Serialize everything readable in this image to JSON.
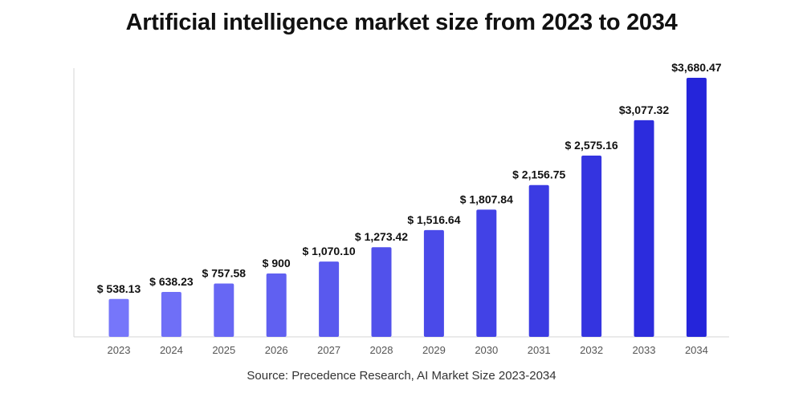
{
  "title": "Artificial intelligence market size from 2023 to 2034",
  "source": "Source: Precedence Research, AI Market Size 2023-2034",
  "colors": {
    "bar_light": "#7676fa",
    "bar_dark": "#2525da",
    "axis": "#d6d6d6"
  },
  "chart_data": {
    "type": "bar",
    "title": "Artificial intelligence market size from 2023 to 2034",
    "xlabel": "",
    "ylabel": "",
    "ylim": [
      0,
      3700
    ],
    "grid": false,
    "categories": [
      "2023",
      "2024",
      "2025",
      "2026",
      "2027",
      "2028",
      "2029",
      "2030",
      "2031",
      "2032",
      "2033",
      "2034"
    ],
    "values": [
      538.13,
      638.23,
      757.58,
      900,
      1070.1,
      1273.42,
      1516.64,
      1807.84,
      2156.75,
      2575.16,
      3077.32,
      3680.47
    ],
    "value_labels": [
      "$ 538.13",
      "$ 638.23",
      "$ 757.58",
      "$ 900",
      "$ 1,070.10",
      "$ 1,273.42",
      "$ 1,516.64",
      "$ 1,807.84",
      "$ 2,156.75",
      "$ 2,575.16",
      "$3,077.32",
      "$3,680.47"
    ]
  }
}
